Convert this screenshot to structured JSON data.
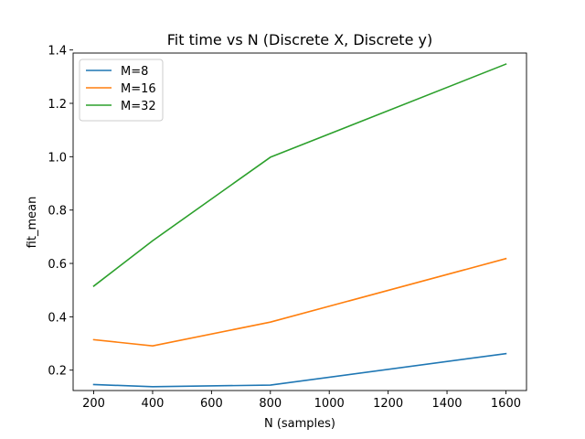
{
  "chart_data": {
    "type": "line",
    "title": "Fit time vs N (Discrete X, Discrete y)",
    "xlabel": "N (samples)",
    "ylabel": "fit_mean",
    "x": [
      200,
      400,
      800,
      1600
    ],
    "series": [
      {
        "name": "M=8",
        "color": "#1f77b4",
        "values": [
          0.146,
          0.138,
          0.144,
          0.262
        ]
      },
      {
        "name": "M=16",
        "color": "#ff7f0e",
        "values": [
          0.314,
          0.291,
          0.38,
          0.618
        ]
      },
      {
        "name": "M=32",
        "color": "#2ca02c",
        "values": [
          0.515,
          0.685,
          0.998,
          1.347
        ]
      }
    ],
    "xlim": [
      130,
      1670
    ],
    "ylim": [
      0.1236,
      1.3885
    ],
    "xticks": [
      200,
      400,
      600,
      800,
      1000,
      1200,
      1400,
      1600
    ],
    "yticks": [
      0.2,
      0.4,
      0.6,
      0.8,
      1.0,
      1.2,
      1.4
    ],
    "ytick_labels": [
      "0.2",
      "0.4",
      "0.6",
      "0.8",
      "1.0",
      "1.2",
      "1.4"
    ],
    "legend_position": "top-left",
    "grid": false
  }
}
